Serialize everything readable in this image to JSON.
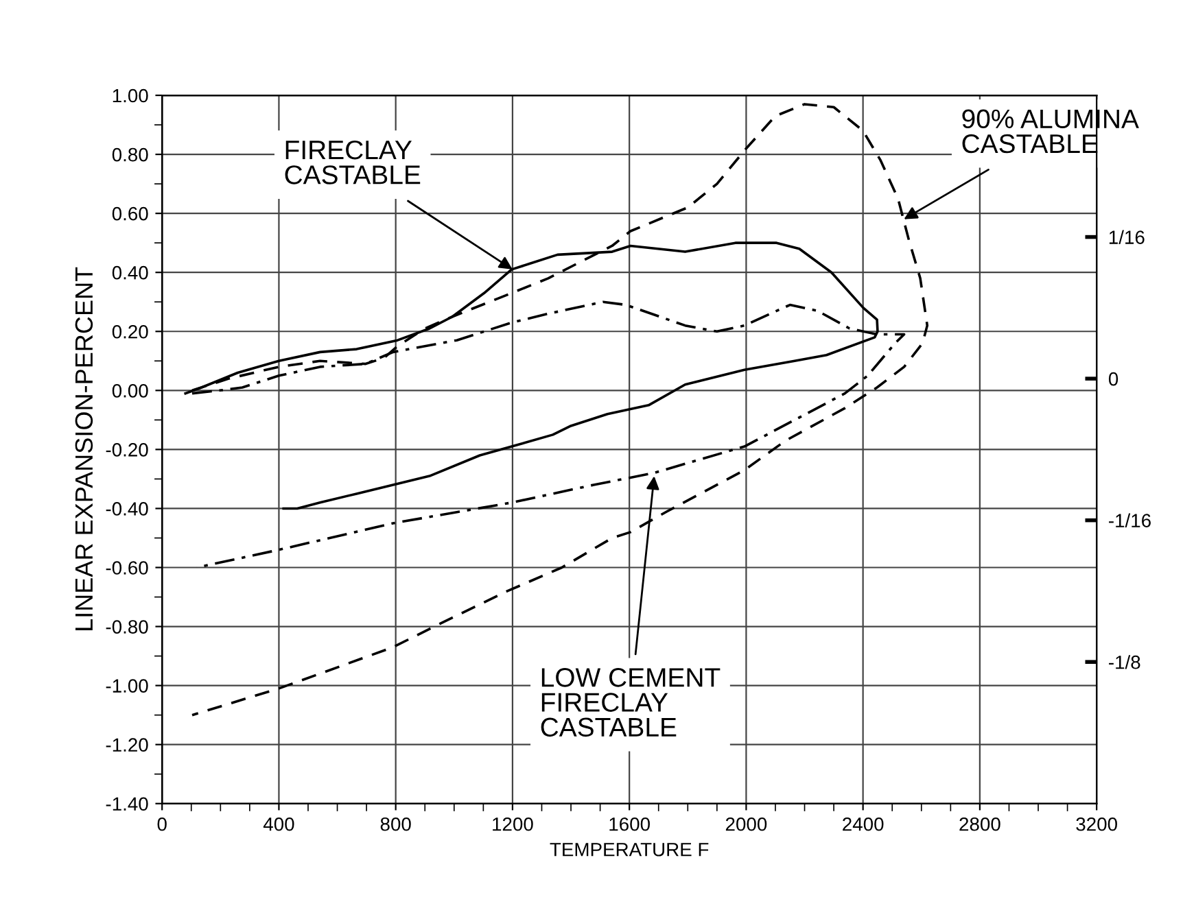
{
  "chart_data": {
    "type": "line",
    "xlabel": "TEMPERATURE F",
    "ylabel": "LINEAR EXPANSION-PERCENT",
    "xlim": [
      0,
      3200
    ],
    "ylim": [
      -1.4,
      1.0
    ],
    "xticks": [
      0,
      {
        "value": 100,
        "label": null
      },
      {
        "value": 200,
        "label": null
      },
      {
        "value": 300,
        "label": null
      },
      400,
      {
        "value": 500,
        "label": null
      },
      {
        "value": 600,
        "label": null
      },
      {
        "value": 700,
        "label": null
      },
      800,
      {
        "value": 900,
        "label": null
      },
      {
        "value": 1000,
        "label": null
      },
      {
        "value": 1100,
        "label": null
      },
      1200,
      {
        "value": 1300,
        "label": null
      },
      {
        "value": 1400,
        "label": null
      },
      {
        "value": 1500,
        "label": null
      },
      1600,
      {
        "value": 1700,
        "label": null
      },
      {
        "value": 1800,
        "label": null
      },
      {
        "value": 1900,
        "label": null
      },
      2000,
      {
        "value": 2100,
        "label": null
      },
      {
        "value": 2200,
        "label": null
      },
      {
        "value": 2300,
        "label": null
      },
      2400,
      {
        "value": 2500,
        "label": null
      },
      {
        "value": 2600,
        "label": null
      },
      {
        "value": 2700,
        "label": null
      },
      2800,
      {
        "value": 2900,
        "label": null
      },
      {
        "value": 3000,
        "label": null
      },
      {
        "value": 3100,
        "label": null
      },
      3200
    ],
    "yticks": [
      {
        "value": 1.0,
        "label": "1.00"
      },
      {
        "value": 0.9,
        "label": null
      },
      {
        "value": 0.8,
        "label": "0.80"
      },
      {
        "value": 0.7,
        "label": null
      },
      {
        "value": 0.6,
        "label": "0.60"
      },
      {
        "value": 0.5,
        "label": null
      },
      {
        "value": 0.4,
        "label": "0.40"
      },
      {
        "value": 0.3,
        "label": null
      },
      {
        "value": 0.2,
        "label": "0.20"
      },
      {
        "value": 0.1,
        "label": null
      },
      {
        "value": 0.0,
        "label": "0.00"
      },
      {
        "value": -0.1,
        "label": null
      },
      {
        "value": -0.2,
        "label": "-0.20"
      },
      {
        "value": -0.3,
        "label": null
      },
      {
        "value": -0.4,
        "label": "-0.40"
      },
      {
        "value": -0.5,
        "label": null
      },
      {
        "value": -0.6,
        "label": "-0.60"
      },
      {
        "value": -0.7,
        "label": null
      },
      {
        "value": -0.8,
        "label": "-0.80"
      },
      {
        "value": -0.9,
        "label": null
      },
      {
        "value": -1.0,
        "label": "-1.00"
      },
      {
        "value": -1.1,
        "label": null
      },
      {
        "value": -1.2,
        "label": "-1.20"
      },
      {
        "value": -1.3,
        "label": null
      },
      {
        "value": -1.4,
        "label": "-1.40"
      }
    ],
    "y2lim": [
      -0.1875,
      0.125
    ],
    "y2ticks": [
      {
        "value": 0.0625,
        "label": "1/16"
      },
      {
        "value": 0,
        "label": "0"
      },
      {
        "value": -0.0625,
        "label": "-1/16"
      },
      {
        "value": -0.125,
        "label": "-1/8"
      }
    ],
    "grid": true,
    "series": [
      {
        "color": "#000000",
        "line_style": "solid",
        "x": [
          80,
          135,
          259,
          400,
          541,
          666,
          806,
          916,
          994,
          1103,
          1197,
          1260,
          1354,
          1541,
          1604,
          1791,
          1963,
          2104,
          2182,
          2292,
          2401,
          2448,
          2450,
          2440,
          2275,
          2166,
          1994,
          1791,
          1666,
          1525,
          1400,
          1338,
          1197,
          1088,
          916,
          791,
          666,
          541,
          463,
          416
        ],
        "values": [
          -0.01,
          0.01,
          0.06,
          0.1,
          0.13,
          0.14,
          0.17,
          0.21,
          0.25,
          0.33,
          0.41,
          0.43,
          0.46,
          0.47,
          0.49,
          0.47,
          0.5,
          0.5,
          0.48,
          0.4,
          0.28,
          0.24,
          0.2,
          0.18,
          0.12,
          0.1,
          0.07,
          0.02,
          -0.05,
          -0.08,
          -0.12,
          -0.15,
          -0.19,
          -0.22,
          -0.29,
          -0.32,
          -0.35,
          -0.38,
          -0.4,
          -0.4
        ]
      },
      {
        "color": "#000000",
        "line_style": "dashed",
        "x": [
          103,
          228,
          400,
          541,
          697,
          760,
          806,
          900,
          994,
          1197,
          1322,
          1541,
          1604,
          1800,
          1900,
          2000,
          2100,
          2200,
          2300,
          2400,
          2460,
          2520,
          2557,
          2596,
          2620,
          2604,
          2541,
          2448,
          2338,
          2135,
          1994,
          1729,
          1604,
          1541,
          1369,
          1229,
          1182,
          932,
          791,
          400,
          103
        ],
        "values": [
          0.0,
          0.04,
          0.08,
          0.1,
          0.09,
          0.11,
          0.15,
          0.21,
          0.25,
          0.33,
          0.38,
          0.49,
          0.54,
          0.62,
          0.7,
          0.82,
          0.93,
          0.97,
          0.96,
          0.88,
          0.78,
          0.65,
          0.51,
          0.38,
          0.22,
          0.16,
          0.08,
          0.01,
          -0.06,
          -0.17,
          -0.27,
          -0.41,
          -0.48,
          -0.5,
          -0.6,
          -0.66,
          -0.68,
          -0.8,
          -0.87,
          -1.01,
          -1.1
        ]
      },
      {
        "color": "#000000",
        "line_style": "dashdot",
        "x": [
          103,
          197,
          275,
          400,
          541,
          697,
          791,
          1009,
          1197,
          1322,
          1510,
          1588,
          1791,
          1900,
          1994,
          2150,
          2244,
          2354,
          2448,
          2541,
          2510,
          2416,
          2338,
          2166,
          1994,
          1682,
          1478,
          1197,
          791,
          400,
          119
        ],
        "values": [
          -0.01,
          0.0,
          0.01,
          0.05,
          0.08,
          0.09,
          0.13,
          0.17,
          0.23,
          0.26,
          0.3,
          0.29,
          0.22,
          0.2,
          0.22,
          0.29,
          0.27,
          0.21,
          0.19,
          0.19,
          0.16,
          0.05,
          -0.01,
          -0.1,
          -0.19,
          -0.28,
          -0.32,
          -0.38,
          -0.45,
          -0.54,
          -0.6
        ]
      }
    ],
    "annotations": [
      {
        "text": "FIRECLAY\nCASTABLE",
        "x": 1200,
        "y": 0.41
      },
      {
        "text": "90% ALUMINA\nCASTABLE",
        "x": 2540,
        "y": 0.58
      },
      {
        "text": "LOW CEMENT\nFIRECLAY\nCASTABLE",
        "x": 1685,
        "y": -0.29
      }
    ]
  }
}
